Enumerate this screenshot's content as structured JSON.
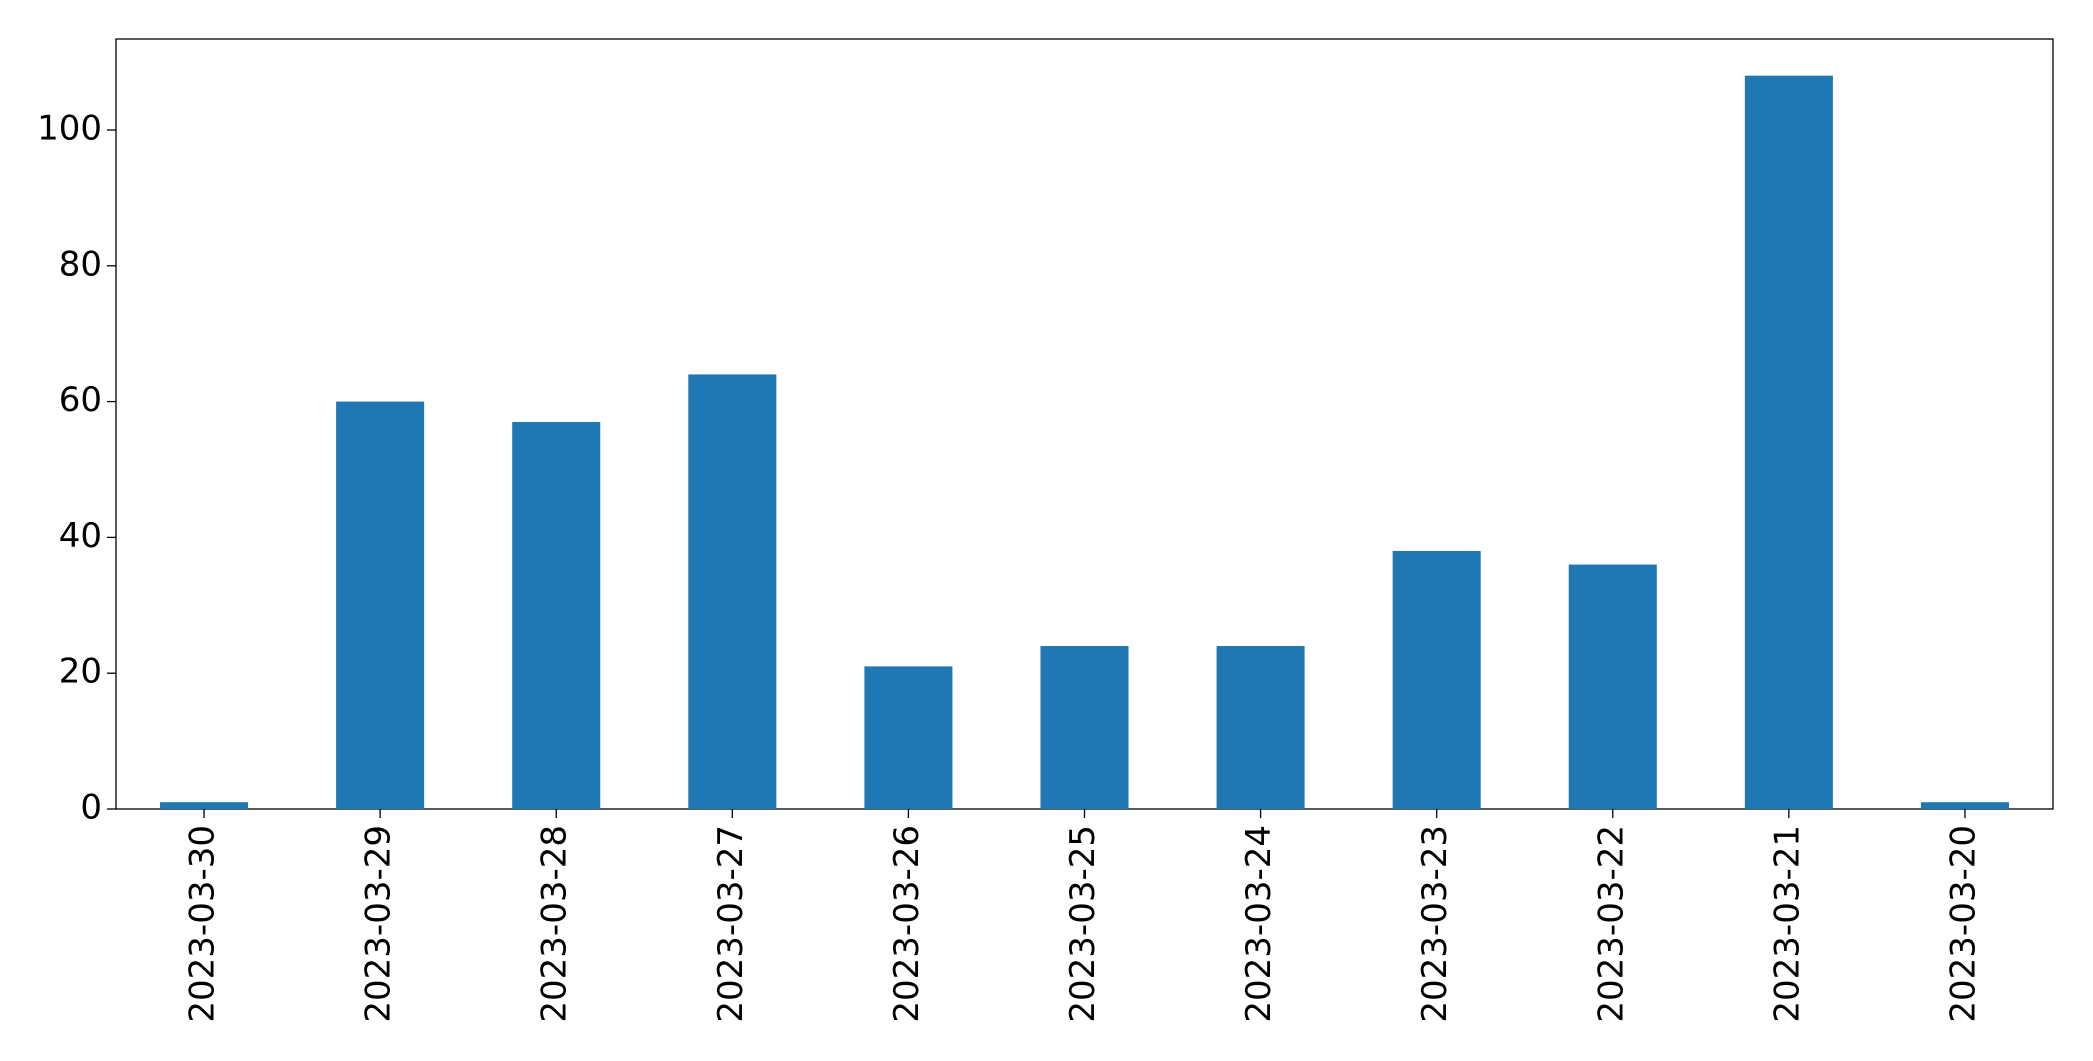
{
  "chart_data": {
    "type": "bar",
    "categories": [
      "2023-03-30",
      "2023-03-29",
      "2023-03-28",
      "2023-03-27",
      "2023-03-26",
      "2023-03-25",
      "2023-03-24",
      "2023-03-23",
      "2023-03-22",
      "2023-03-21",
      "2023-03-20"
    ],
    "values": [
      1,
      60,
      57,
      64,
      21,
      24,
      24,
      38,
      36,
      108,
      1
    ],
    "color": "#1f77b4",
    "ylim": [
      0,
      113.4
    ],
    "yticks": [
      0,
      20,
      40,
      60,
      80,
      100
    ],
    "grid": false
  }
}
